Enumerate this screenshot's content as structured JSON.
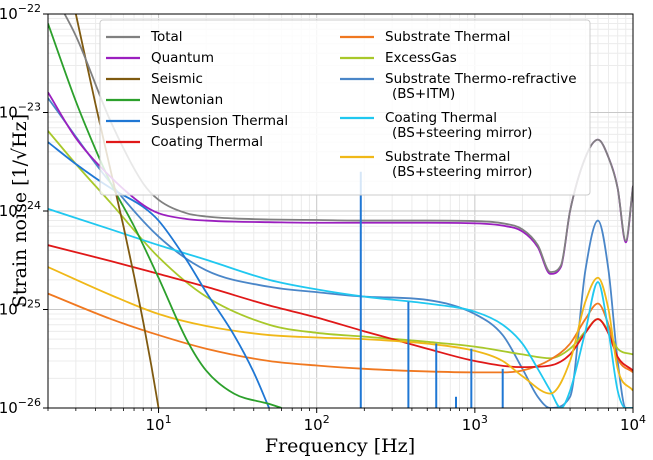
{
  "chart_data": {
    "type": "line",
    "xlabel": "Frequency [Hz]",
    "ylabel": "Strain noise [1/√Hz]",
    "xscale": "log",
    "yscale": "log",
    "xlim": [
      2,
      10000
    ],
    "ylim": [
      1e-26,
      1e-22
    ],
    "grid": "major and minor, both axes",
    "legend_position": "upper",
    "x_tick_labels": [
      {
        "exp": "1",
        "value": 10
      },
      {
        "exp": "2",
        "value": 100
      },
      {
        "exp": "3",
        "value": 1000
      },
      {
        "exp": "4",
        "value": 10000
      }
    ],
    "y_tick_labels": [
      {
        "exp": "−22",
        "value": 1e-22
      },
      {
        "exp": "−23",
        "value": 1e-23
      },
      {
        "exp": "−24",
        "value": 1e-24
      },
      {
        "exp": "−25",
        "value": 1e-25
      },
      {
        "exp": "−26",
        "value": 1e-26
      }
    ],
    "tick_base": "10",
    "series": [
      {
        "name": "Total",
        "color": "#808080",
        "x": [
          2,
          3,
          5,
          8,
          10,
          15,
          20,
          30,
          50,
          100,
          200,
          500,
          1000,
          1500,
          2000,
          2500,
          3000,
          3500,
          4000,
          5000,
          6000,
          7000,
          8000,
          9000,
          10000
        ],
        "y": [
          2e-22,
          6e-23,
          8e-24,
          1.9e-24,
          1.3e-24,
          9.5e-25,
          8.8e-25,
          8.4e-25,
          8.2e-25,
          8.1e-25,
          8e-25,
          8e-25,
          7.9e-25,
          7.5e-25,
          6.5e-25,
          4.5e-25,
          2.4e-25,
          2.8e-25,
          1e-24,
          3.5e-24,
          5.3e-24,
          3.5e-24,
          1.7e-24,
          5e-25,
          1.8e-24
        ]
      },
      {
        "name": "Quantum",
        "color": "#9b1fbf",
        "x": [
          2,
          3,
          5,
          8,
          10,
          15,
          20,
          30,
          50,
          100,
          200,
          500,
          1000,
          1500,
          2000,
          2500,
          3000,
          3500,
          4000,
          5000,
          6000,
          7000,
          8000,
          9000,
          10000
        ],
        "y": [
          1.6e-23,
          5.5e-24,
          2.2e-24,
          1.15e-24,
          9.5e-25,
          8.3e-25,
          8e-25,
          7.8e-25,
          7.7e-25,
          7.6e-25,
          7.6e-25,
          7.6e-25,
          7.5e-25,
          7.1e-25,
          6.2e-25,
          4.3e-25,
          2.3e-25,
          2.7e-25,
          1e-24,
          3.5e-24,
          5.3e-24,
          3.5e-24,
          1.7e-24,
          4.8e-25,
          1.8e-24
        ]
      },
      {
        "name": "Seismic",
        "color": "#7f5a10",
        "x": [
          3,
          4,
          5,
          6,
          7,
          8,
          9,
          10
        ],
        "y": [
          1e-22,
          1.2e-23,
          2.5e-24,
          7e-25,
          2.2e-25,
          7.5e-26,
          2.7e-26,
          1e-26
        ]
      },
      {
        "name": "Newtonian",
        "color": "#2ca02c",
        "x": [
          2,
          3,
          4,
          5,
          7,
          10,
          15,
          20,
          30,
          50,
          60
        ],
        "y": [
          8e-23,
          1.3e-23,
          4.2e-24,
          1.9e-24,
          7e-25,
          2.1e-25,
          5e-26,
          2.4e-26,
          1.4e-26,
          1.1e-26,
          1e-26
        ]
      },
      {
        "name": "Suspension Thermal",
        "color": "#1f77d4",
        "x": [
          2,
          3,
          5,
          8,
          10,
          15,
          20,
          30,
          40,
          50
        ],
        "y": [
          5e-24,
          3e-24,
          1.7e-24,
          1.1e-24,
          8e-25,
          3.2e-25,
          1.5e-25,
          5.5e-26,
          2.3e-26,
          1e-26
        ]
      },
      {
        "name": "Coating Thermal",
        "color": "#e01818",
        "x": [
          2,
          5,
          10,
          20,
          50,
          100,
          200,
          500,
          1000,
          2000,
          3000,
          4000,
          5000,
          6000,
          7000,
          8000,
          10000
        ],
        "y": [
          4.5e-25,
          3.1e-25,
          2.3e-25,
          1.7e-25,
          1.1e-25,
          8.3e-26,
          6e-26,
          4e-26,
          3e-26,
          2.6e-26,
          2.7e-26,
          3.5e-26,
          5.8e-26,
          8e-26,
          5.7e-26,
          3.3e-26,
          2.4e-26
        ]
      },
      {
        "name": "Substrate Thermal",
        "color": "#f07820",
        "x": [
          2,
          5,
          10,
          20,
          50,
          100,
          200,
          500,
          1000,
          1500,
          2000,
          3000,
          4000,
          5000,
          6000,
          7000,
          8000,
          10000
        ],
        "y": [
          1.45e-25,
          8e-26,
          5.5e-26,
          4e-26,
          3e-26,
          2.7e-26,
          2.5e-26,
          2.35e-26,
          2.3e-26,
          2.3e-26,
          2.4e-26,
          3.1e-26,
          4.5e-26,
          8e-26,
          1.15e-25,
          7e-26,
          3.2e-26,
          2.3e-26
        ]
      },
      {
        "name": "ExcessGas",
        "color": "#a8c82a",
        "x": [
          2,
          3,
          5,
          10,
          20,
          50,
          100,
          200,
          500,
          1000,
          2000,
          3000,
          4000,
          5000,
          6000,
          7000,
          8000,
          10000
        ],
        "y": [
          6.5e-24,
          3e-24,
          1.2e-24,
          3.4e-25,
          1.35e-25,
          7e-26,
          5.8e-26,
          5.3e-26,
          4.7e-26,
          4.2e-26,
          3.5e-26,
          3.2e-26,
          4e-26,
          6e-26,
          8e-26,
          6e-26,
          4e-26,
          3.5e-26
        ]
      },
      {
        "name": "Substrate Thermo-refractive",
        "name_line2": "(BS+ITM)",
        "color": "#4a86c8",
        "x": [
          2,
          5,
          10,
          20,
          50,
          100,
          200,
          500,
          1000,
          1500,
          2000,
          2500,
          3000,
          4000,
          5000,
          6000,
          7000,
          8000,
          9000,
          10000
        ],
        "y": [
          1.4e-23,
          1.9e-24,
          5.5e-25,
          2.5e-25,
          1.7e-25,
          1.5e-25,
          1.35e-25,
          1.25e-25,
          9e-26,
          5.5e-26,
          2.5e-26,
          1.3e-26,
          1e-26,
          1.3e-26,
          2.5e-25,
          8e-25,
          2.5e-25,
          3e-26,
          1e-26,
          1e-26
        ]
      },
      {
        "name": "Coating Thermal",
        "name_line2": "(BS+steering mirror)",
        "color": "#20c8f0",
        "x": [
          2,
          5,
          10,
          20,
          50,
          100,
          200,
          500,
          1000,
          1500,
          2000,
          2500,
          3000,
          3500,
          4000,
          5000,
          6000,
          7000,
          8000,
          9000,
          10000
        ],
        "y": [
          1.05e-24,
          6.5e-25,
          4.5e-25,
          3.2e-25,
          2e-25,
          1.6e-25,
          1.35e-25,
          1.15e-25,
          9.5e-26,
          7e-26,
          4.5e-26,
          2.5e-26,
          1.5e-26,
          1e-26,
          1.5e-26,
          6e-26,
          1.9e-25,
          6e-26,
          1.5e-26,
          1e-26,
          1e-26
        ]
      },
      {
        "name": "Substrate Thermal",
        "name_line2": "(BS+steering mirror)",
        "color": "#f0b818",
        "x": [
          2,
          5,
          10,
          20,
          50,
          100,
          200,
          500,
          1000,
          1500,
          2000,
          3000,
          4000,
          5000,
          6000,
          7000,
          8000,
          10000
        ],
        "y": [
          2.7e-25,
          1.4e-25,
          9e-26,
          6.8e-26,
          5.5e-26,
          5.2e-26,
          5e-26,
          4.5e-26,
          3.8e-26,
          3e-26,
          2.1e-26,
          1.4e-26,
          3e-26,
          1.2e-25,
          2.1e-25,
          1e-25,
          2.5e-26,
          1.5e-26
        ]
      }
    ],
    "spikes": {
      "color": "#1f77d4",
      "x": [
        190,
        380,
        570,
        760,
        950,
        1500
      ],
      "y_top": [
        2.5e-24,
        1.2e-25,
        4.5e-26,
        1.3e-26,
        4e-26,
        2.5e-26
      ]
    }
  }
}
